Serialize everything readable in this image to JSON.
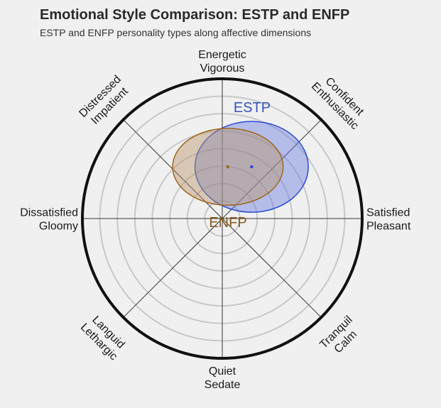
{
  "chart_data": {
    "type": "scatter",
    "title": "Emotional Style Comparison: ESTP and ENFP",
    "subtitle": "ESTP and ENFP personality types along affective dimensions",
    "axes": [
      {
        "angle": 90,
        "lines": [
          "Energetic",
          "Vigorous"
        ]
      },
      {
        "angle": 45,
        "lines": [
          "Confident",
          "Enthusiastic"
        ]
      },
      {
        "angle": 0,
        "lines": [
          "Satisfied",
          "Pleasant"
        ]
      },
      {
        "angle": -45,
        "lines": [
          "Tranquil",
          "Calm"
        ]
      },
      {
        "angle": -90,
        "lines": [
          "Quiet",
          "Sedate"
        ]
      },
      {
        "angle": -135,
        "lines": [
          "Languid",
          "Lethargic"
        ]
      },
      {
        "angle": 180,
        "lines": [
          "Dissatisfied",
          "Gloomy"
        ]
      },
      {
        "angle": 135,
        "lines": [
          "Distressed",
          "Impatient"
        ]
      }
    ],
    "xlim": [
      -1,
      1
    ],
    "ylim": [
      -1,
      1
    ],
    "ring_count": 7,
    "series": [
      {
        "name": "ESTP",
        "center": [
          0.21,
          0.37
        ],
        "width": 0.81,
        "height": 0.65,
        "fill": "#6a7fe0",
        "stroke": "#2b4bd0",
        "label_color": "#3355bb"
      },
      {
        "name": "ENFP",
        "center": [
          0.04,
          0.37
        ],
        "width": 0.79,
        "height": 0.55,
        "fill": "#b8946a",
        "stroke": "#a0661c",
        "label_color": "#8a5a20"
      }
    ]
  }
}
